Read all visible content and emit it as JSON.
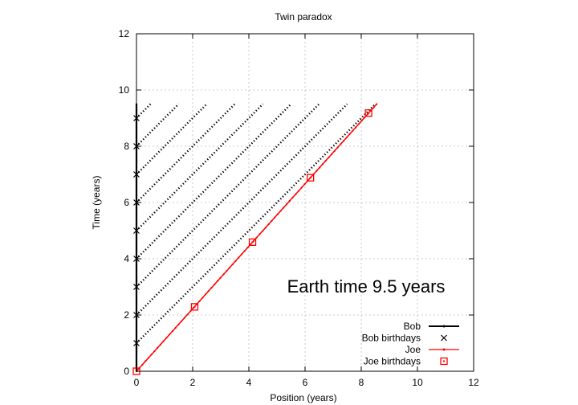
{
  "chart_data": {
    "type": "line",
    "title": "Twin paradox",
    "xlabel": "Position (years)",
    "ylabel": "Time (years)",
    "xlim": [
      0,
      12
    ],
    "ylim": [
      0,
      12
    ],
    "xticks": [
      "0",
      "2",
      "4",
      "6",
      "8",
      "10",
      "12"
    ],
    "yticks": [
      "0",
      "2",
      "4",
      "6",
      "8",
      "10",
      "12"
    ],
    "grid": true,
    "legend_position": "bottom-right",
    "annotation": "Earth time  9.5 years",
    "velocity_c": 0.9,
    "series": [
      {
        "name": "Bob",
        "kind": "line",
        "color": "#000000",
        "x": [
          0,
          0
        ],
        "y": [
          0,
          9.5
        ]
      },
      {
        "name": "Bob birthdays",
        "kind": "points",
        "marker": "x",
        "color": "#000000",
        "x": [
          0,
          0,
          0,
          0,
          0,
          0,
          0,
          0,
          0
        ],
        "y": [
          1,
          2,
          3,
          4,
          5,
          6,
          7,
          8,
          9
        ]
      },
      {
        "name": "Joe",
        "kind": "line",
        "color": "#ff0000",
        "x": [
          0,
          8.55
        ],
        "y": [
          0,
          9.5
        ]
      },
      {
        "name": "Joe birthdays",
        "kind": "points",
        "marker": "square",
        "color": "#ff0000",
        "x": [
          0,
          2.07,
          4.13,
          6.19,
          8.26
        ],
        "y": [
          0,
          2.29,
          4.59,
          6.88,
          9.18
        ]
      }
    ],
    "signal_lines": [
      {
        "from_bob_time": 1,
        "to_time": 9.5
      },
      {
        "from_bob_time": 2,
        "to_time": 9.5
      },
      {
        "from_bob_time": 3,
        "to_time": 9.5
      },
      {
        "from_bob_time": 4,
        "to_time": 9.5
      },
      {
        "from_bob_time": 5,
        "to_time": 9.5
      },
      {
        "from_bob_time": 6,
        "to_time": 9.5
      },
      {
        "from_bob_time": 7,
        "to_time": 9.5
      },
      {
        "from_bob_time": 8,
        "to_time": 9.5
      },
      {
        "from_bob_time": 9,
        "to_time": 9.5
      }
    ]
  }
}
